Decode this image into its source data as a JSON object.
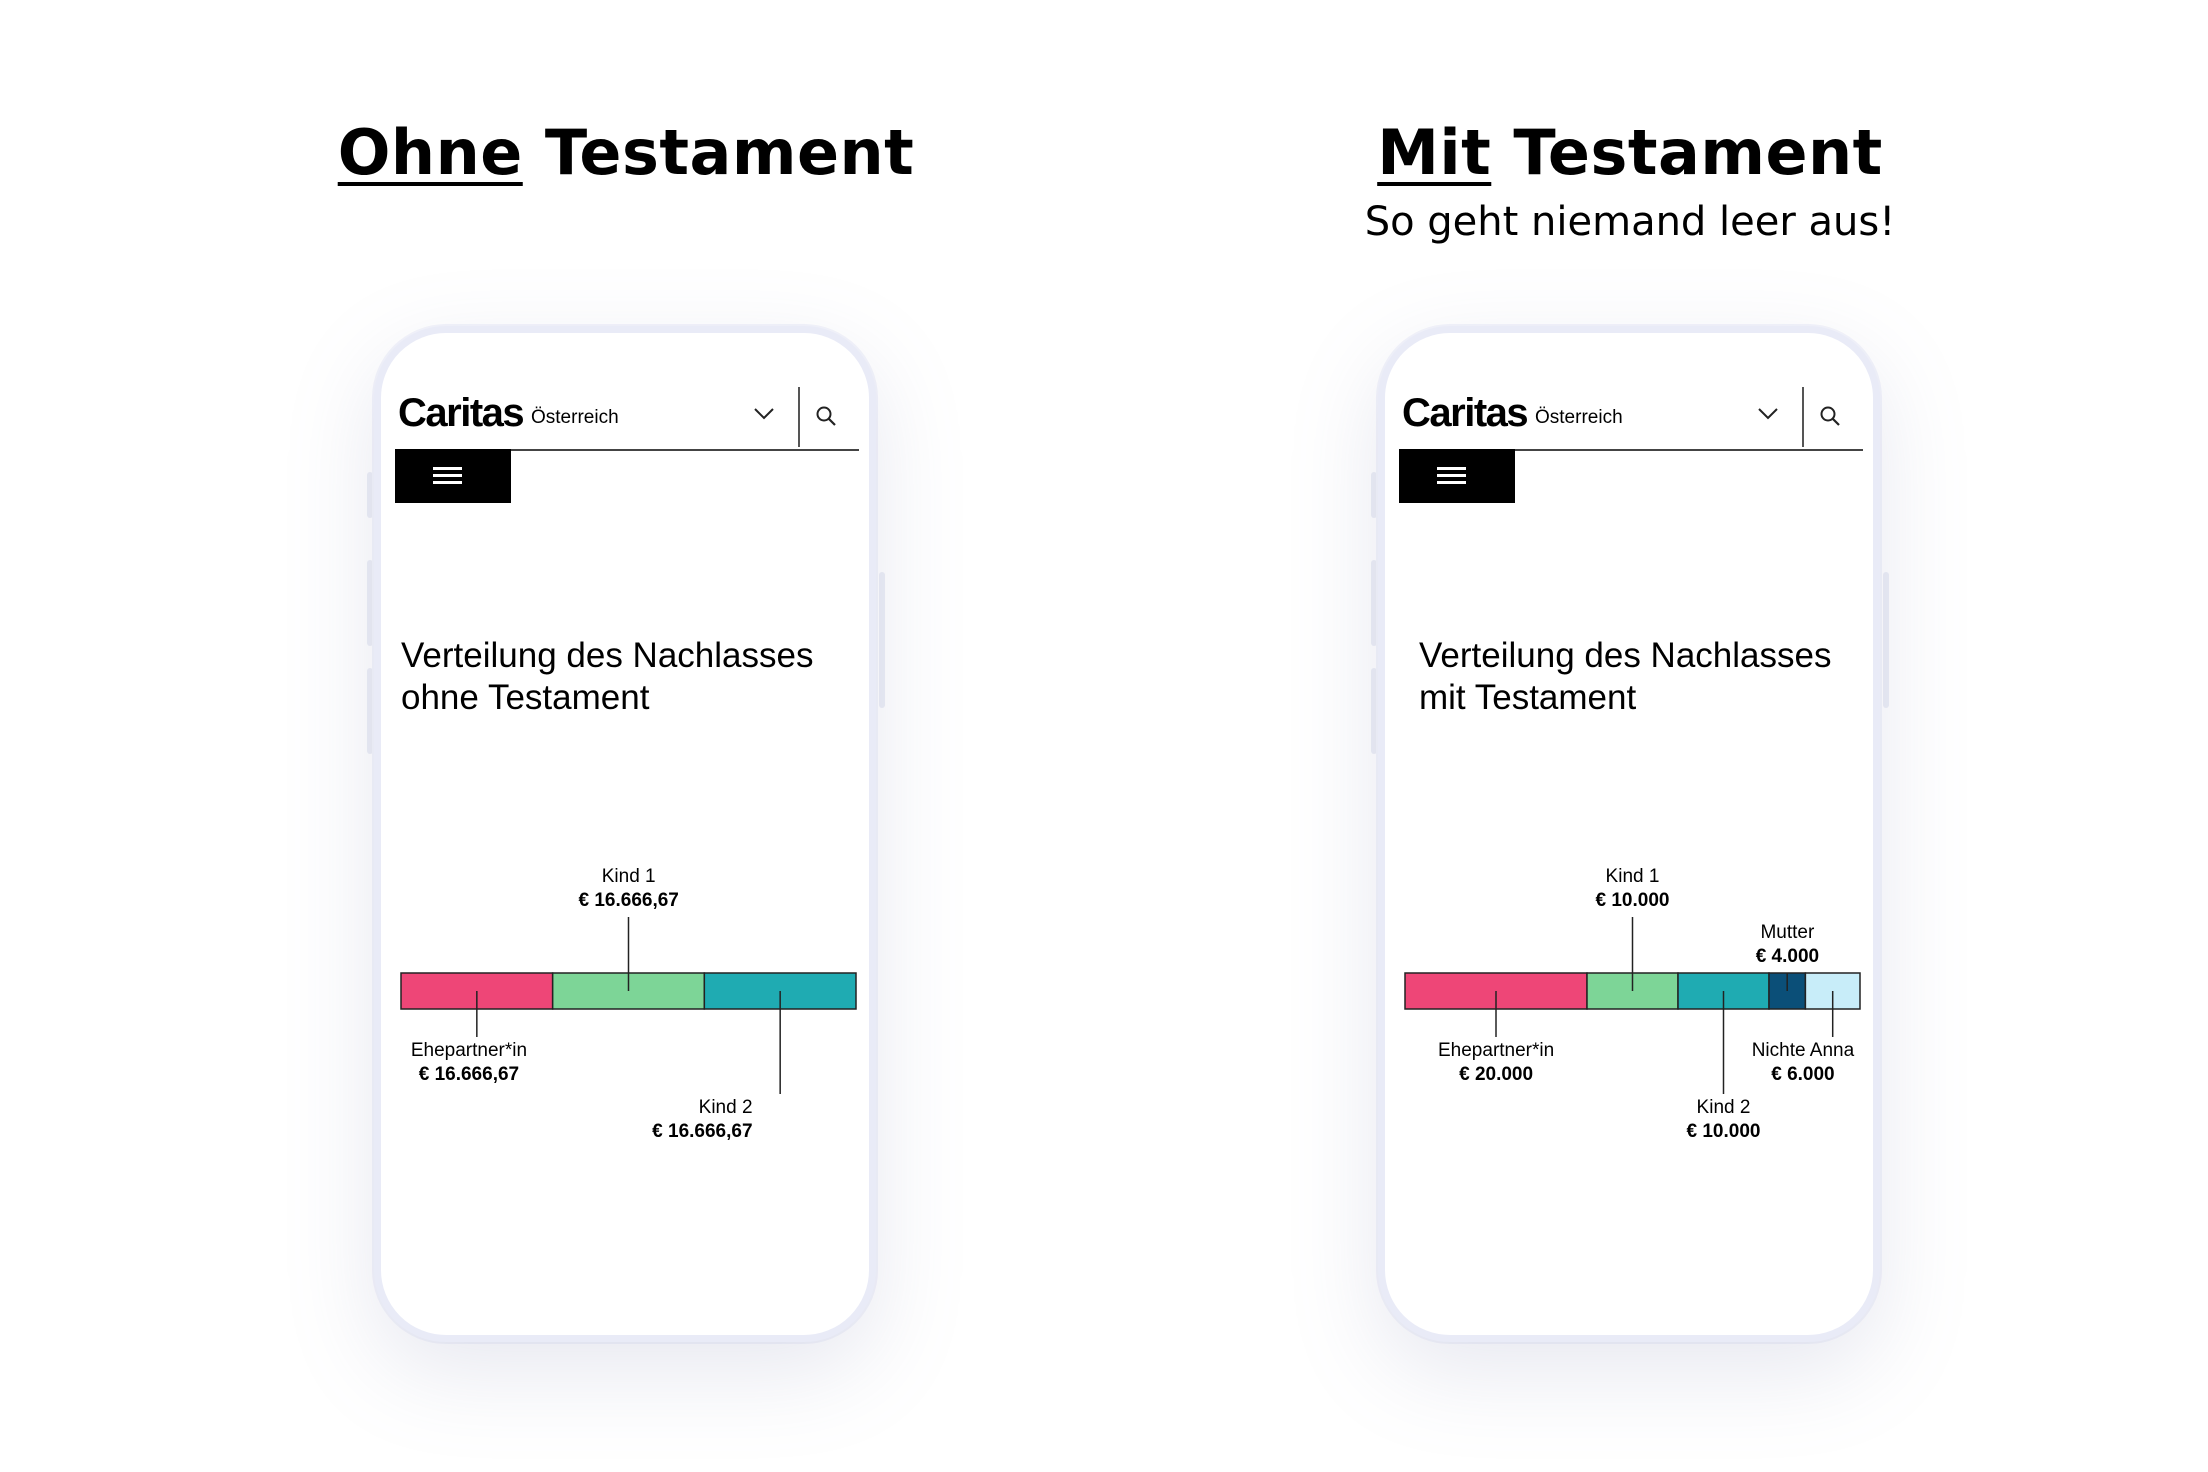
{
  "left": {
    "title_underlined": "Ohne",
    "title_rest": " Testament",
    "phone": {
      "logo": "Caritas",
      "logo_sub": "Österreich",
      "heading_line1": "Verteilung des Nachlasses",
      "heading_line2": "ohne Testament"
    },
    "chart_data": {
      "type": "bar",
      "categories": [
        "Ehepartner*in",
        "Kind 1",
        "Kind 2"
      ],
      "values": [
        16666.67,
        16666.67,
        16666.67
      ],
      "value_labels": [
        "€ 16.666,67",
        "€ 16.666,67",
        "€ 16.666,67"
      ],
      "colors": [
        "#ee4677",
        "#7dd597",
        "#1fabb2"
      ]
    }
  },
  "right": {
    "title_underlined": "Mit",
    "title_rest": " Testament",
    "subtitle": "So geht niemand leer aus!",
    "phone": {
      "logo": "Caritas",
      "logo_sub": "Österreich",
      "heading_line1": "Verteilung des Nachlasses",
      "heading_line2": "mit Testament"
    },
    "chart_data": {
      "type": "bar",
      "categories": [
        "Ehepartner*in",
        "Kind 1",
        "Kind 2",
        "Mutter",
        "Nichte Anna"
      ],
      "values": [
        20000,
        10000,
        10000,
        4000,
        6000
      ],
      "value_labels": [
        "€ 20.000",
        "€ 10.000",
        "€ 10.000",
        "€ 4.000",
        "€ 6.000"
      ],
      "colors": [
        "#ee4677",
        "#7dd597",
        "#1fabb2",
        "#0b4f78",
        "#c8edf9"
      ]
    }
  },
  "icons": {
    "chevron": "chevron-down-icon",
    "search": "search-icon",
    "menu": "hamburger-menu-icon"
  }
}
